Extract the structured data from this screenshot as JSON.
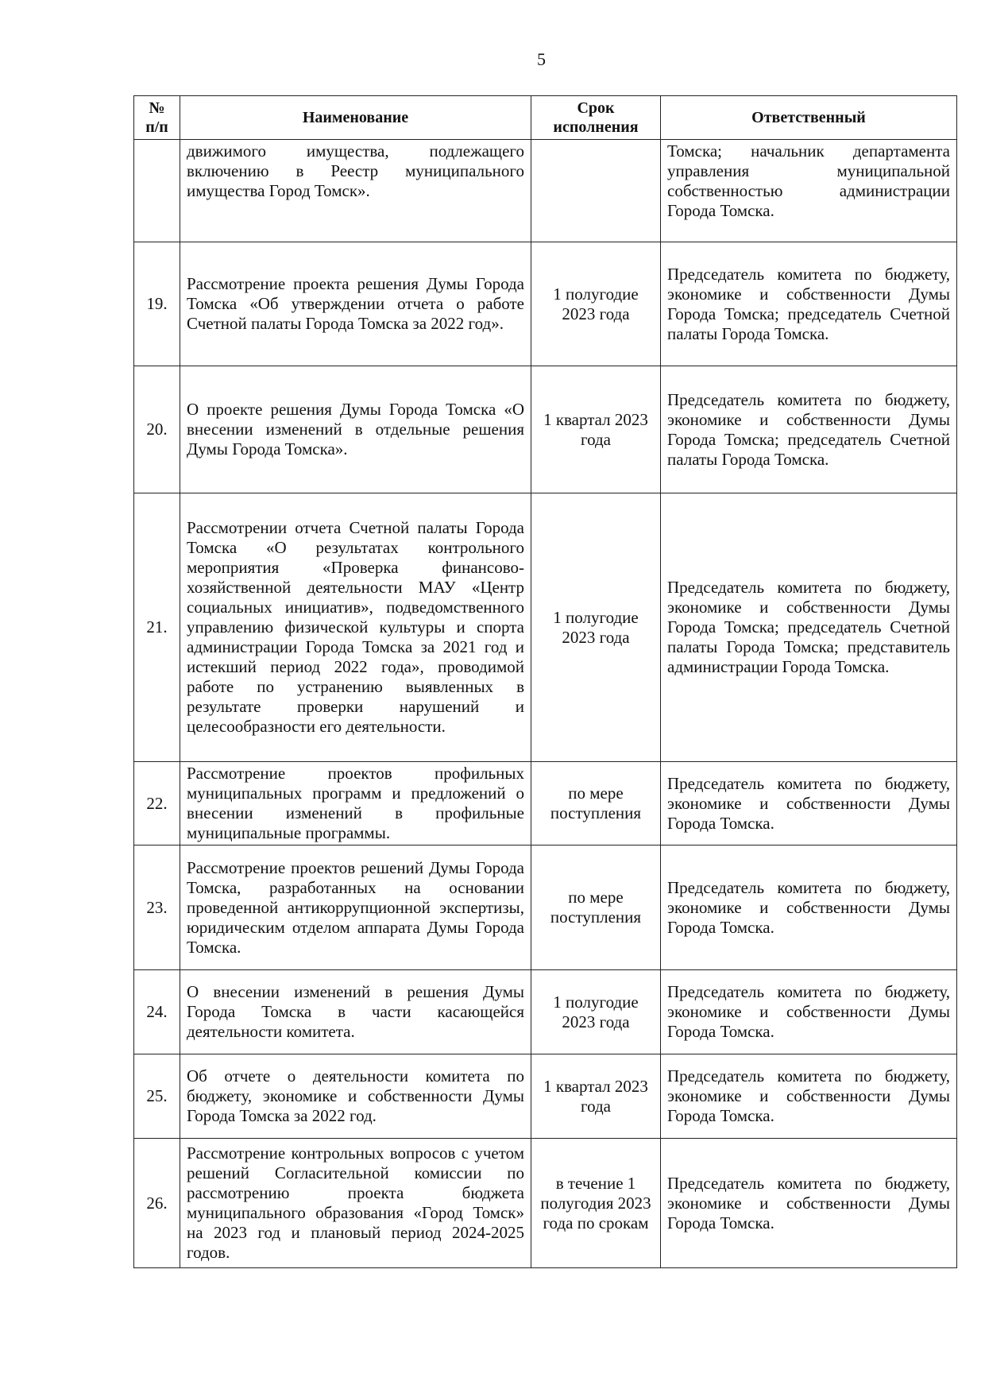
{
  "page_number": "5",
  "headers": {
    "num": "№ п/п",
    "name": "Наименование",
    "term": "Срок исполнения",
    "resp": "Ответственный"
  },
  "rows": [
    {
      "num": "",
      "name": "движимого имущества, подлежащего включению в Реестр муниципального имущества Город Томск».",
      "term": "",
      "resp": "Томска; начальник департамента управления муниципальной собственностью администрации Города Томска."
    },
    {
      "num": "19.",
      "name": "Рассмотрение проекта решения Думы Города Томска «Об утверждении отчета о работе Счетной палаты Города Томска за 2022 год».",
      "term": "1 полугодие 2023 года",
      "resp": "Председатель комитета по бюджету, экономике и собственности Думы Города Томска; председатель Счетной палаты Города Томска."
    },
    {
      "num": "20.",
      "name": "О проекте решения Думы Города Томска «О внесении изменений в отдельные решения Думы Города Томска».",
      "term": "1 квартал 2023 года",
      "resp": "Председатель комитета по бюджету, экономике и собственности Думы Города Томска; председатель Счетной палаты Города Томска."
    },
    {
      "num": "21.",
      "name": "Рассмотрении отчета Счетной палаты Города Томска «О результатах контрольного мероприятия «Проверка финансово-хозяйственной деятельности МАУ «Центр социальных инициатив», подведомственного управлению физической культуры и спорта администрации Города Томска за 2021 год и истекший период 2022 года», проводимой работе по устранению выявленных в результате проверки нарушений и целесообразности его деятельности.",
      "term": "1 полугодие 2023 года",
      "resp": "Председатель комитета по бюджету, экономике и собственности Думы Города Томска; председатель Счетной палаты Города Томска; представитель администрации Города Томска."
    },
    {
      "num": "22.",
      "name": "Рассмотрение проектов профильных муниципальных программ и предложений о внесении изменений в профильные муниципальные программы.",
      "term": "по мере поступления",
      "resp": "Председатель комитета по бюджету, экономике и собственности Думы Города Томска."
    },
    {
      "num": "23.",
      "name": "Рассмотрение проектов решений Думы Города Томска, разработанных на основании проведенной антикоррупционной экспертизы, юридическим отделом аппарата Думы Города Томска.",
      "term": "по мере поступления",
      "resp": "Председатель комитета по бюджету, экономике и собственности Думы Города Томска."
    },
    {
      "num": "24.",
      "name": "О внесении изменений в решения Думы Города Томска в части касающейся деятельности комитета.",
      "term": "1 полугодие 2023 года",
      "resp": "Председатель комитета по бюджету, экономике и собственности Думы Города Томска."
    },
    {
      "num": "25.",
      "name": "Об отчете о деятельности комитета по бюджету, экономике и собственности Думы Города Томска за 2022 год.",
      "term": "1 квартал 2023 года",
      "resp": "Председатель комитета по бюджету, экономике и собственности Думы Города Томска."
    },
    {
      "num": "26.",
      "name": "Рассмотрение контрольных вопросов с учетом решений Согласительной комиссии по рассмотрению проекта бюджета муниципального образования «Город Томск» на 2023 год и плановый период 2024-2025 годов.",
      "term": "в течение 1 полугодия 2023 года по срокам",
      "resp": "Председатель комитета по бюджету, экономике и собственности Думы Города Томска."
    }
  ]
}
